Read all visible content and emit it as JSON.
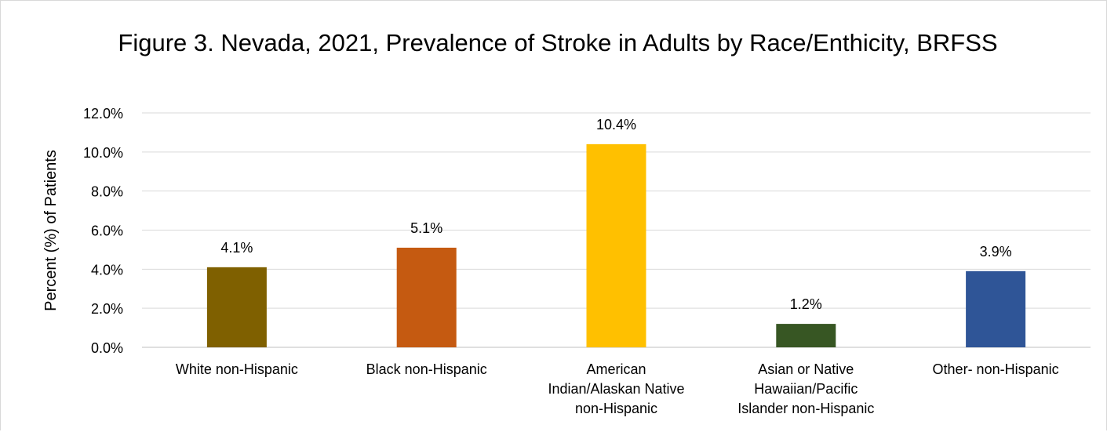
{
  "chart_data": {
    "type": "bar",
    "title": "Figure 3. Nevada, 2021, Prevalence of Stroke in Adults by Race/Enthicity, BRFSS",
    "xlabel": "",
    "ylabel": "Percent (%) of Patients",
    "categories": [
      [
        "White non-Hispanic"
      ],
      [
        "Black non-Hispanic"
      ],
      [
        "American",
        "Indian/Alaskan Native",
        "non-Hispanic"
      ],
      [
        "Asian or Native",
        "Hawaiian/Pacific",
        "Islander non-Hispanic"
      ],
      [
        "Other- non-Hispanic"
      ]
    ],
    "values": [
      4.1,
      5.1,
      10.4,
      1.2,
      3.9
    ],
    "data_labels": [
      "4.1%",
      "5.1%",
      "10.4%",
      "1.2%",
      "3.9%"
    ],
    "colors": [
      "#7F6000",
      "#C55A11",
      "#FFC000",
      "#375623",
      "#2F5597"
    ],
    "ylim": [
      0,
      12
    ],
    "yticks": [
      "0.0%",
      "2.0%",
      "4.0%",
      "6.0%",
      "8.0%",
      "10.0%",
      "12.0%"
    ],
    "grid": true,
    "legend": "none"
  }
}
